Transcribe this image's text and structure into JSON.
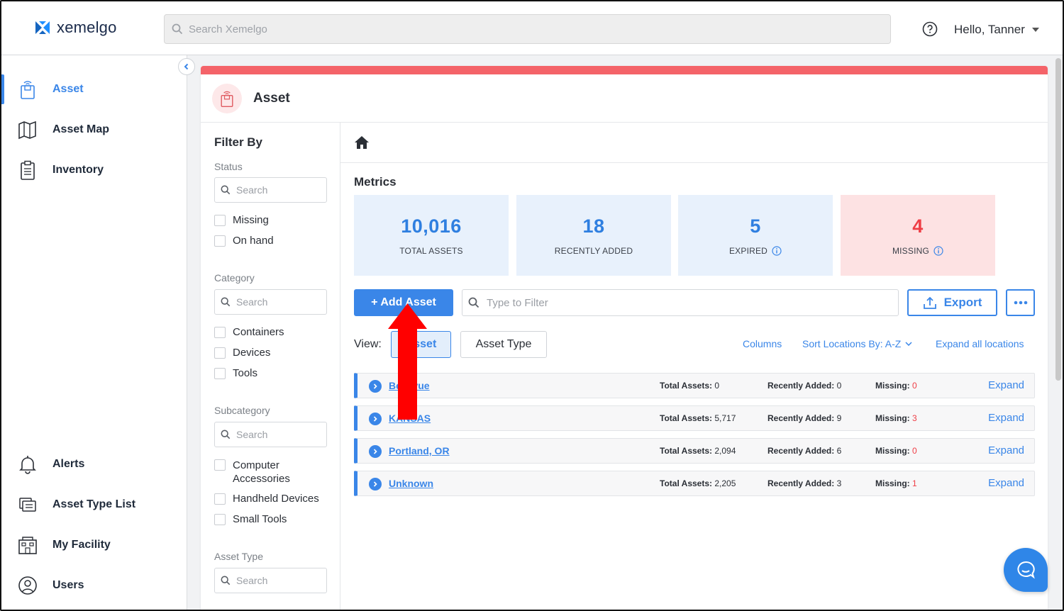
{
  "app": {
    "logo_text": "xemelgo"
  },
  "search": {
    "placeholder": "Search Xemelgo"
  },
  "user": {
    "greeting": "Hello, Tanner"
  },
  "sidebar": {
    "items": [
      {
        "label": "Asset",
        "icon": "asset-icon",
        "active": true
      },
      {
        "label": "Asset Map",
        "icon": "map-icon"
      },
      {
        "label": "Inventory",
        "icon": "clipboard-icon"
      },
      {
        "label": "Alerts",
        "icon": "bell-icon"
      },
      {
        "label": "Asset Type List",
        "icon": "list-icon"
      },
      {
        "label": "My Facility",
        "icon": "building-icon"
      },
      {
        "label": "Users",
        "icon": "user-icon"
      }
    ]
  },
  "page": {
    "title": "Asset",
    "accent_color": "#f46369"
  },
  "filter": {
    "title": "Filter By",
    "status": {
      "label": "Status",
      "placeholder": "Search",
      "options": [
        "Missing",
        "On hand"
      ]
    },
    "category": {
      "label": "Category",
      "placeholder": "Search",
      "options": [
        "Containers",
        "Devices",
        "Tools"
      ]
    },
    "subcategory": {
      "label": "Subcategory",
      "placeholder": "Search",
      "options": [
        "Computer Accessories",
        "Handheld Devices",
        "Small Tools"
      ]
    },
    "asset_type": {
      "label": "Asset Type",
      "placeholder": "Search"
    }
  },
  "metrics": {
    "title": "Metrics",
    "cards": [
      {
        "value": "10,016",
        "caption": "TOTAL ASSETS"
      },
      {
        "value": "18",
        "caption": "RECENTLY ADDED"
      },
      {
        "value": "5",
        "caption": "EXPIRED"
      },
      {
        "value": "4",
        "caption": "MISSING"
      }
    ]
  },
  "toolbar": {
    "add_label": "+ Add Asset",
    "filter_placeholder": "Type to Filter",
    "export_label": "Export"
  },
  "view": {
    "label": "View:",
    "options": [
      "Asset",
      "Asset Type"
    ],
    "columns_label": "Columns",
    "sort_label": "Sort Locations By: A-Z",
    "expand_all_label": "Expand all locations"
  },
  "locations": {
    "total_label": "Total Assets:",
    "recent_label": "Recently Added:",
    "missing_label": "Missing:",
    "expand_label": "Expand",
    "rows": [
      {
        "name": "Bellevue",
        "total": "0",
        "recent": "0",
        "missing": "0"
      },
      {
        "name": "KANSAS",
        "total": "5,717",
        "recent": "9",
        "missing": "3"
      },
      {
        "name": "Portland, OR",
        "total": "2,094",
        "recent": "6",
        "missing": "0"
      },
      {
        "name": "Unknown",
        "total": "2,205",
        "recent": "3",
        "missing": "1"
      }
    ]
  },
  "colors": {
    "brand_blue": "#3a86e8",
    "alert_red": "#ef3e46",
    "annotation_red": "#ff0000"
  }
}
